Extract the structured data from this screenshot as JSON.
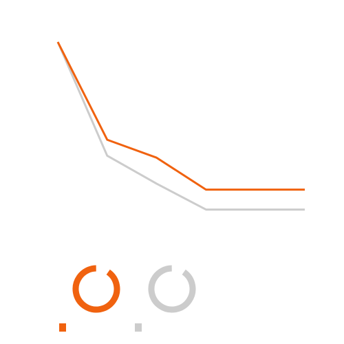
{
  "colors": {
    "background": "#ffffff",
    "series_1": "#f0620f",
    "series_2": "#cccccc"
  },
  "chart_data": {
    "type": "line",
    "title": "",
    "xlabel": "",
    "ylabel": "",
    "x": [
      1,
      2,
      3,
      4,
      5,
      6
    ],
    "xlim": [
      1,
      6
    ],
    "ylim": [
      0,
      100
    ],
    "grid": false,
    "series": [
      {
        "values": [
          100,
          51,
          42,
          26,
          26,
          26
        ],
        "color": "#f0620f"
      },
      {
        "values": [
          100,
          43,
          29,
          16,
          16,
          16
        ],
        "color": "#cccccc"
      }
    ],
    "legend": {
      "placement": "bottom-left",
      "entries": [
        {
          "marker": "ring",
          "color": "#f0620f"
        },
        {
          "marker": "ring",
          "color": "#cccccc"
        }
      ]
    }
  }
}
